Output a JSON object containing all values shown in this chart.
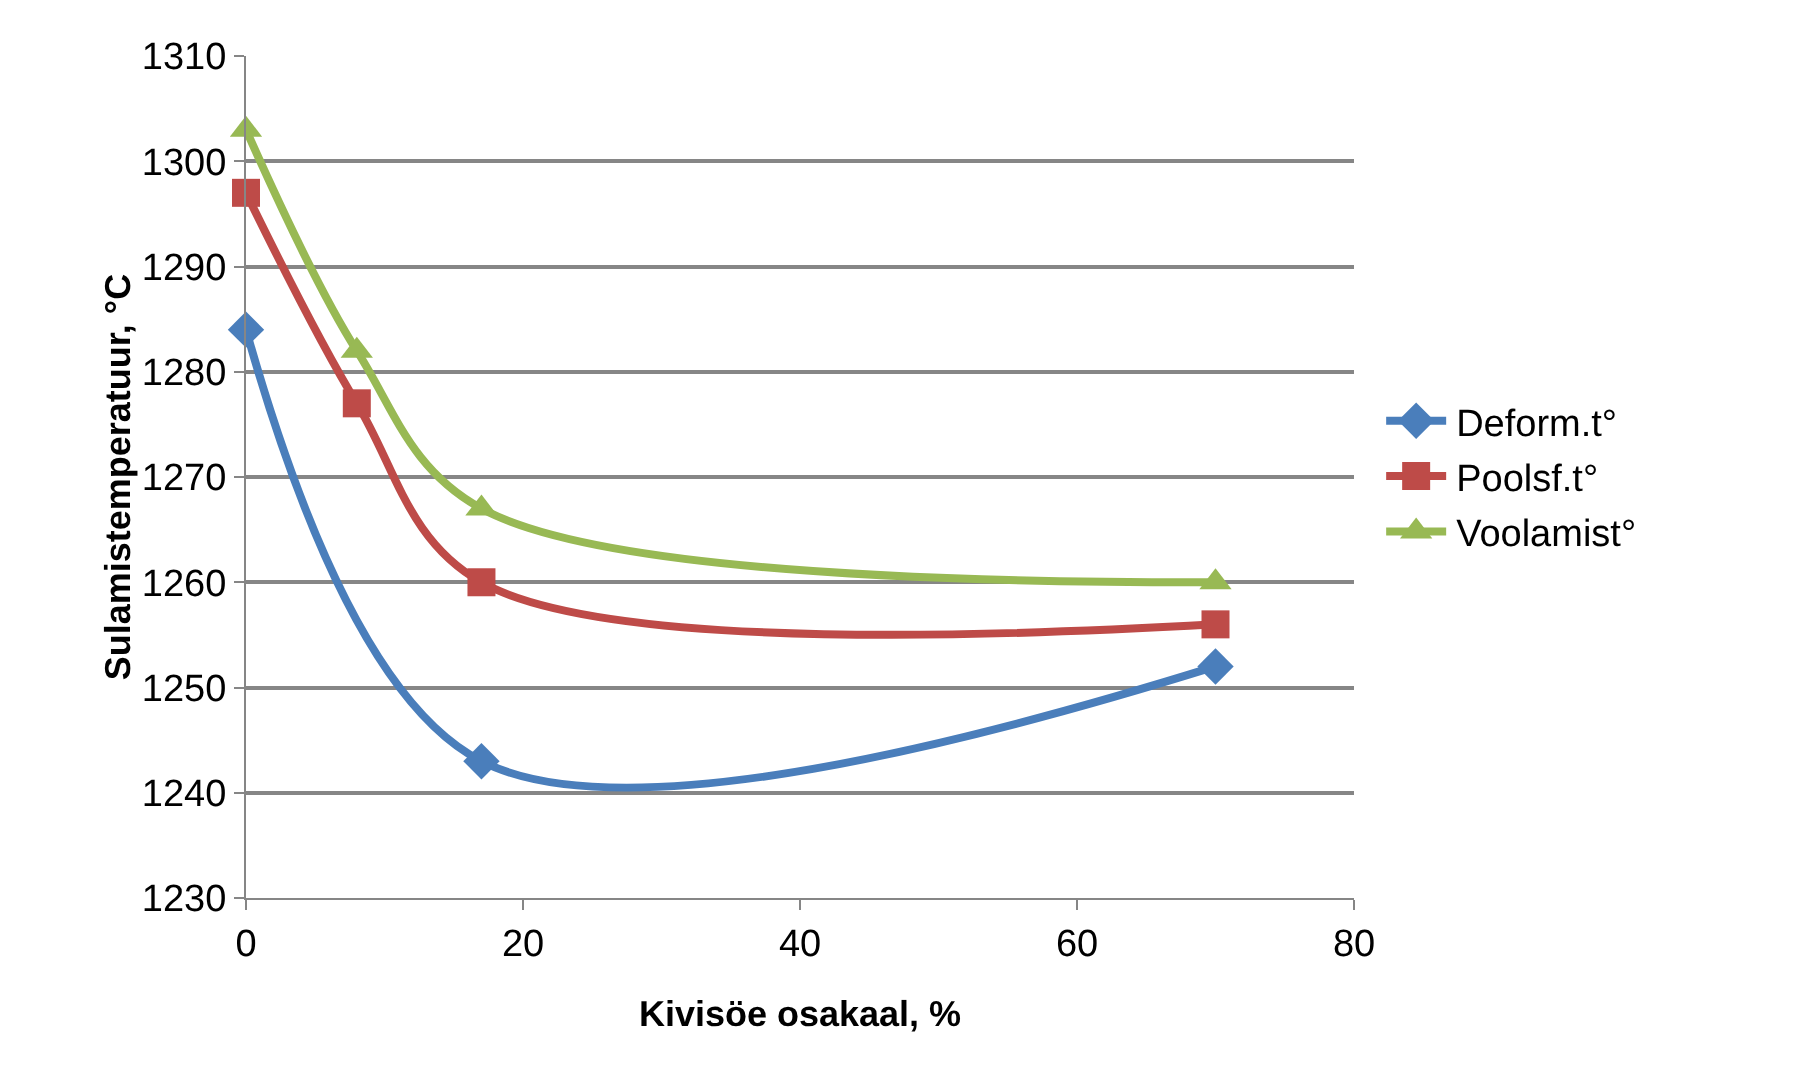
{
  "chart_data": {
    "type": "line",
    "xlabel": "Kivisöe osakaal, %",
    "ylabel": "Sulamistemperatuur, °C",
    "xlim": [
      0,
      80
    ],
    "xticks": [
      0,
      20,
      40,
      60,
      80
    ],
    "ylim": [
      1230,
      1310
    ],
    "yticks": [
      1230,
      1240,
      1250,
      1260,
      1270,
      1280,
      1290,
      1300,
      1310
    ],
    "grid": "y",
    "legend": "right",
    "line_style": "solid",
    "series": [
      {
        "name": "Deform.t°",
        "color": "#4a7ebb",
        "marker": "diamond",
        "x": [
          0,
          17,
          70
        ],
        "values": [
          1284,
          1243,
          1252
        ]
      },
      {
        "name": "Poolsf.t°",
        "color": "#be4b48",
        "marker": "square",
        "x": [
          0,
          8,
          17,
          70
        ],
        "values": [
          1297,
          1277,
          1260,
          1256
        ]
      },
      {
        "name": "Voolamist°",
        "color": "#98b954",
        "marker": "triangle",
        "x": [
          0,
          8,
          17,
          70
        ],
        "values": [
          1303,
          1282,
          1267,
          1260
        ]
      }
    ]
  }
}
